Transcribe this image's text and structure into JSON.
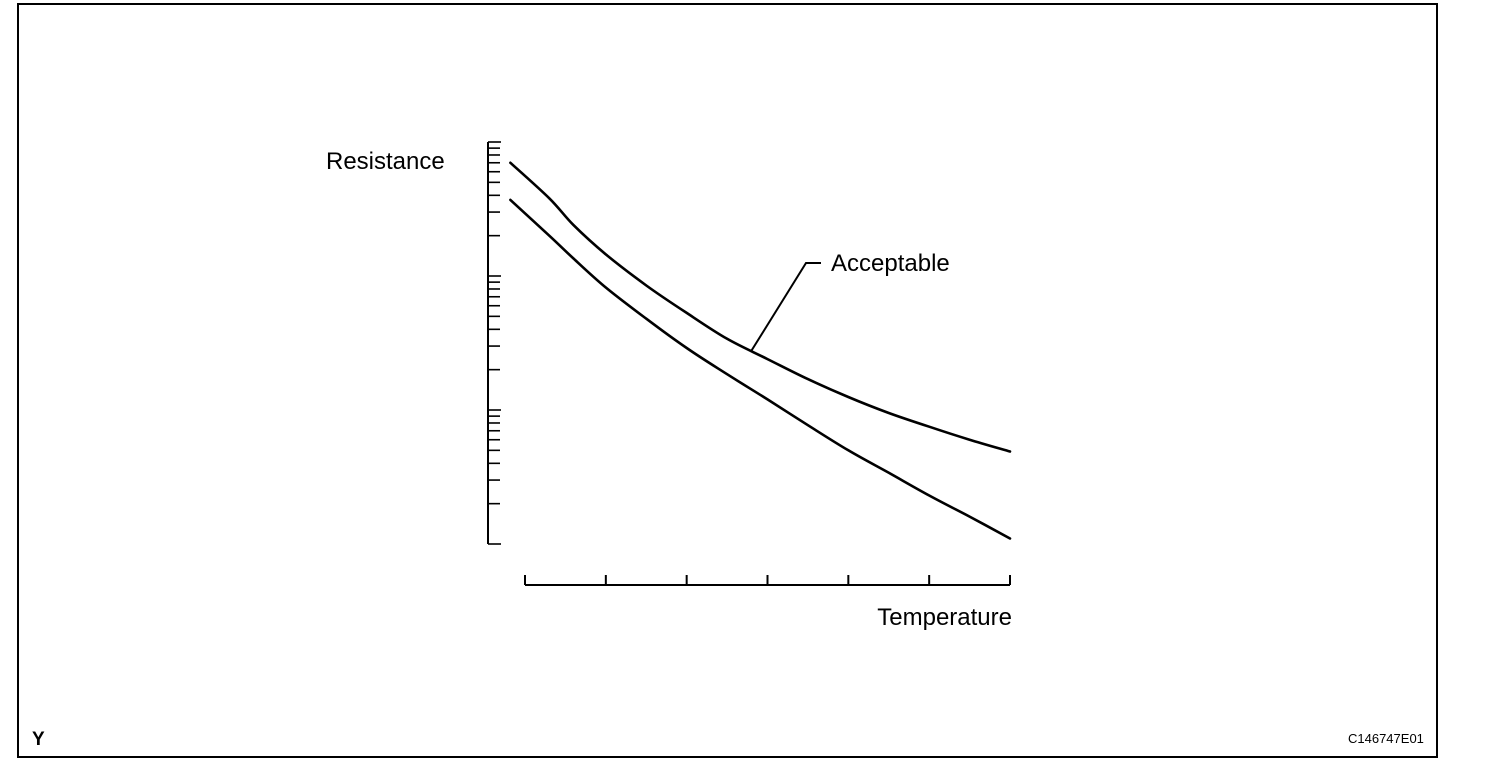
{
  "figure": {
    "corner_letter": "Y",
    "figure_id": "C146747E01"
  },
  "chart_data": {
    "type": "line",
    "title": "",
    "xlabel": "Temperature",
    "ylabel": "Resistance",
    "yscale": "log",
    "x_ticks": 7,
    "y_decades": 3,
    "xlim": [
      0,
      6
    ],
    "ylim": [
      1,
      1000
    ],
    "grid": false,
    "legend": "none",
    "annotations": [
      {
        "text": "Acceptable",
        "target_series": "upper"
      }
    ],
    "series": [
      {
        "key": "upper",
        "x": [
          -0.18,
          0.3,
          0.6,
          1,
          1.5,
          2,
          2.5,
          3,
          3.5,
          4,
          4.5,
          5,
          5.5,
          6
        ],
        "y": [
          700,
          380,
          240,
          145,
          85,
          53,
          34,
          24,
          17,
          12.5,
          9.5,
          7.5,
          6,
          4.9
        ]
      },
      {
        "key": "lower",
        "x": [
          -0.18,
          0.3,
          0.6,
          1,
          1.5,
          2,
          2.5,
          3,
          3.5,
          4,
          4.5,
          5,
          5.5,
          6
        ],
        "y": [
          370,
          200,
          135,
          82,
          48,
          29,
          18.5,
          12,
          7.7,
          5,
          3.4,
          2.3,
          1.6,
          1.1
        ]
      }
    ]
  }
}
